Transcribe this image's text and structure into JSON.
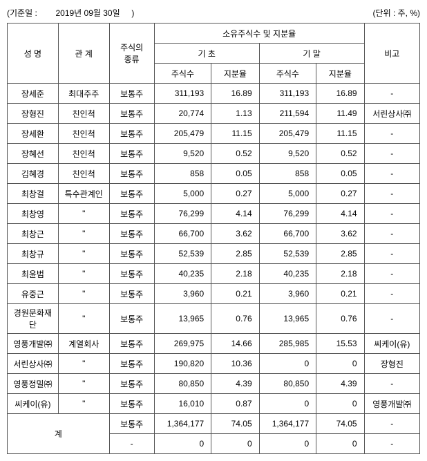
{
  "meta": {
    "base_date_label": "(기준일 :",
    "base_date_value": "2019년 09월 30일",
    "base_date_close": ")",
    "unit": "(단위 : 주, %)"
  },
  "headers": {
    "name": "성 명",
    "relation": "관 계",
    "stock_type": "주식의\n종류",
    "ownership": "소유주식수 및 지분율",
    "period_begin": "기 초",
    "period_end": "기 말",
    "shares": "주식수",
    "pct": "지분율",
    "note": "비고",
    "total": "계"
  },
  "rows": [
    {
      "name": "장세준",
      "rel": "최대주주",
      "type": "보통주",
      "bs": "311,193",
      "bp": "16.89",
      "es": "311,193",
      "ep": "16.89",
      "note": "-"
    },
    {
      "name": "장형진",
      "rel": "친인척",
      "type": "보통주",
      "bs": "20,774",
      "bp": "1.13",
      "es": "211,594",
      "ep": "11.49",
      "note": "서린상사㈜"
    },
    {
      "name": "장세환",
      "rel": "친인척",
      "type": "보통주",
      "bs": "205,479",
      "bp": "11.15",
      "es": "205,479",
      "ep": "11.15",
      "note": "-"
    },
    {
      "name": "장혜선",
      "rel": "친인척",
      "type": "보통주",
      "bs": "9,520",
      "bp": "0.52",
      "es": "9,520",
      "ep": "0.52",
      "note": "-"
    },
    {
      "name": "김혜경",
      "rel": "친인척",
      "type": "보통주",
      "bs": "858",
      "bp": "0.05",
      "es": "858",
      "ep": "0.05",
      "note": "-"
    },
    {
      "name": "최창걸",
      "rel": "특수관계인",
      "type": "보통주",
      "bs": "5,000",
      "bp": "0.27",
      "es": "5,000",
      "ep": "0.27",
      "note": "-"
    },
    {
      "name": "최창영",
      "rel": "\"",
      "type": "보통주",
      "bs": "76,299",
      "bp": "4.14",
      "es": "76,299",
      "ep": "4.14",
      "note": "-"
    },
    {
      "name": "최창근",
      "rel": "\"",
      "type": "보통주",
      "bs": "66,700",
      "bp": "3.62",
      "es": "66,700",
      "ep": "3.62",
      "note": "-"
    },
    {
      "name": "최창규",
      "rel": "\"",
      "type": "보통주",
      "bs": "52,539",
      "bp": "2.85",
      "es": "52,539",
      "ep": "2.85",
      "note": "-"
    },
    {
      "name": "최윤범",
      "rel": "\"",
      "type": "보통주",
      "bs": "40,235",
      "bp": "2.18",
      "es": "40,235",
      "ep": "2.18",
      "note": "-"
    },
    {
      "name": "유중근",
      "rel": "\"",
      "type": "보통주",
      "bs": "3,960",
      "bp": "0.21",
      "es": "3,960",
      "ep": "0.21",
      "note": "-"
    },
    {
      "name": "경원문화재단",
      "rel": "\"",
      "type": "보통주",
      "bs": "13,965",
      "bp": "0.76",
      "es": "13,965",
      "ep": "0.76",
      "note": "-"
    },
    {
      "name": "영풍개발㈜",
      "rel": "계열회사",
      "type": "보통주",
      "bs": "269,975",
      "bp": "14.66",
      "es": "285,985",
      "ep": "15.53",
      "note": "씨케이(유)"
    },
    {
      "name": "서린상사㈜",
      "rel": "\"",
      "type": "보통주",
      "bs": "190,820",
      "bp": "10.36",
      "es": "0",
      "ep": "0",
      "note": "장형진"
    },
    {
      "name": "영풍정밀㈜",
      "rel": "\"",
      "type": "보통주",
      "bs": "80,850",
      "bp": "4.39",
      "es": "80,850",
      "ep": "4.39",
      "note": "-"
    },
    {
      "name": "씨케이(유)",
      "rel": "\"",
      "type": "보통주",
      "bs": "16,010",
      "bp": "0.87",
      "es": "0",
      "ep": "0",
      "note": "영풍개발㈜"
    }
  ],
  "totals": [
    {
      "type": "보통주",
      "bs": "1,364,177",
      "bp": "74.05",
      "es": "1,364,177",
      "ep": "74.05",
      "note": "-"
    },
    {
      "type": "-",
      "bs": "0",
      "bp": "0",
      "es": "0",
      "ep": "0",
      "note": "-"
    }
  ]
}
